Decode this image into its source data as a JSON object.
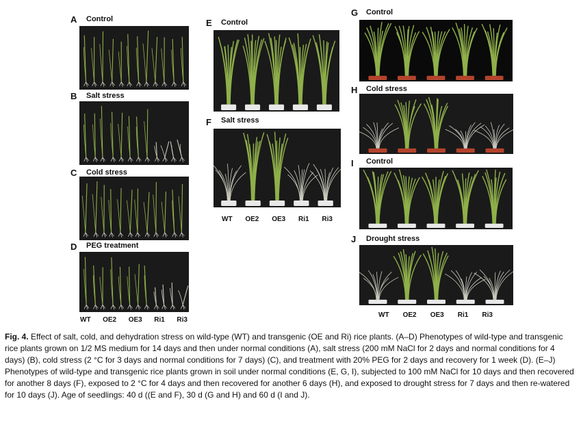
{
  "panels": {
    "A": {
      "letter": "A",
      "title": "Control"
    },
    "B": {
      "letter": "B",
      "title": "Salt stress"
    },
    "C": {
      "letter": "C",
      "title": "Cold stress"
    },
    "D": {
      "letter": "D",
      "title": "PEG treatment"
    },
    "E": {
      "letter": "E",
      "title": "Control"
    },
    "F": {
      "letter": "F",
      "title": "Salt stress"
    },
    "G": {
      "letter": "G",
      "title": "Control"
    },
    "H": {
      "letter": "H",
      "title": "Cold stress"
    },
    "I": {
      "letter": "I",
      "title": "Control"
    },
    "J": {
      "letter": "J",
      "title": "Drought stress"
    }
  },
  "genotypes": [
    "WT",
    "OE2",
    "OE3",
    "Ri1",
    "Ri3"
  ],
  "colors": {
    "photo_background": "#1a1a1a",
    "plant_green": "#8fb04a",
    "pot_white": "#e8e8e8",
    "pot_red": "#b3432c"
  },
  "caption": {
    "label": "Fig. 4.",
    "text": "Effect of salt, cold, and dehydration stress on wild-type (WT) and transgenic (OE and Ri) rice plants. (A–D) Phenotypes of wild-type and transgenic rice plants grown on 1/2 MS medium for 14 days and then under normal conditions (A), salt stress (200 mM NaCl for 2 days and normal conditions for 4 days) (B), cold stress (2 °C for 3 days and normal conditions for 7 days) (C), and treatment with 20% PEG for 2 days and recovery for 1 week (D). (E–J) Phenotypes of wild-type and transgenic rice plants grown in soil under normal conditions (E, G, I), subjected to 100 mM NaCl for 10 days and then recovered for another 8 days (F), exposed to 2 °C for 4 days and then recovered for another 6 days (H), and exposed to drought stress for 7 days and then re-watered for 10 days (J). Age of seedlings: 40 d ((E and F), 30 d (G and H) and 60 d (I and J)."
  }
}
